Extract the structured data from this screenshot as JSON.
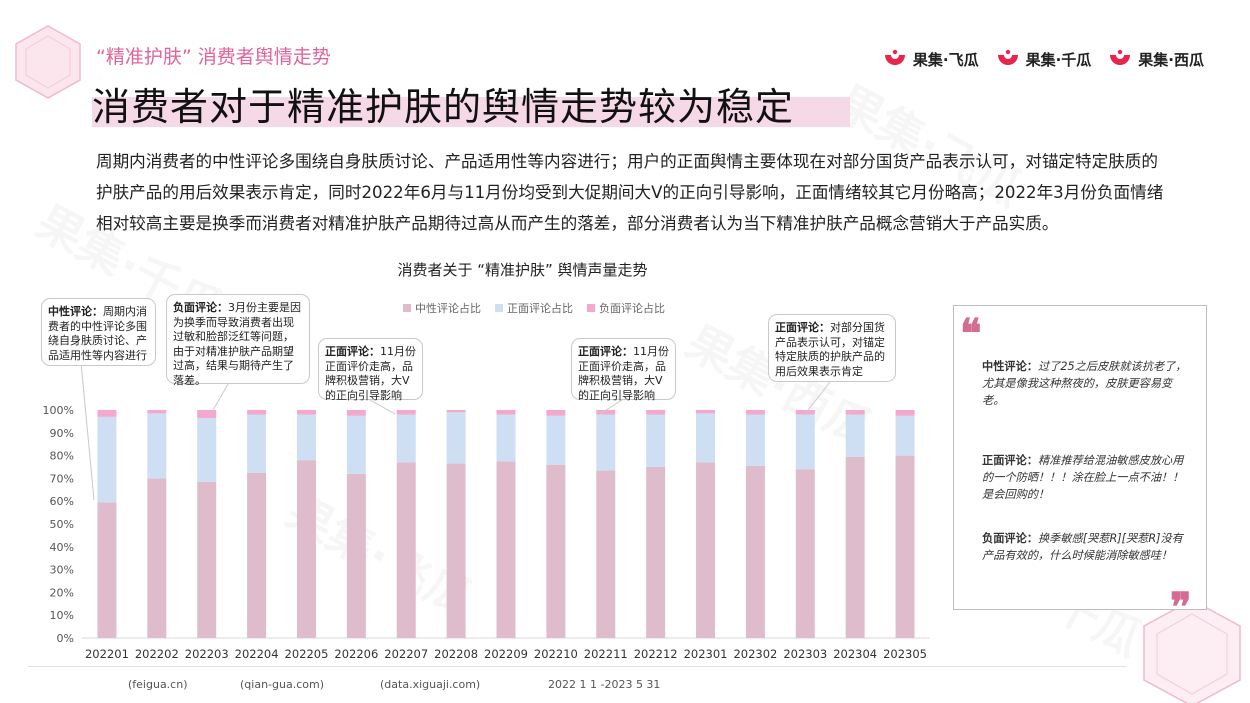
{
  "header": {
    "subtitle": "“精准护肤” 消费者舆情走势",
    "title": "消费者对于精准护肤的舆情走势较为稳定",
    "logos": [
      {
        "label": "果集·飞瓜",
        "icon": "guoji-logo-icon"
      },
      {
        "label": "果集·千瓜",
        "icon": "guoji-logo-icon"
      },
      {
        "label": "果集·西瓜",
        "icon": "guoji-logo-icon"
      }
    ]
  },
  "description": "周期内消费者的中性评论多围绕自身肤质讨论、产品适用性等内容进行；用户的正面舆情主要体现在对部分国货产品表示认可，对锚定特定肤质的护肤产品的用后效果表示肯定，同时2022年6月与11月份均受到大促期间大V的正向引导影响，正面情绪较其它月份略高；2022年3月份负面情绪相对较高主要是换季而消费者对精准护肤产品期待过高从而产生的落差，部分消费者认为当下精准护肤产品概念营销大于产品实质。",
  "chart_data": {
    "type": "bar",
    "stacked": true,
    "title": "消费者关于 “精准护肤” 舆情声量走势",
    "categories": [
      "202201",
      "202202",
      "202203",
      "202204",
      "202205",
      "202206",
      "202207",
      "202208",
      "202209",
      "202210",
      "202211",
      "202212",
      "202301",
      "202302",
      "202303",
      "202304",
      "202305"
    ],
    "series": [
      {
        "name": "中性评论占比",
        "color": "#dfbccb",
        "values": [
          59.5,
          70,
          68.5,
          72.5,
          78,
          72,
          77,
          76.5,
          77.5,
          76,
          73.5,
          75,
          77,
          75.5,
          74,
          79.5,
          80
        ]
      },
      {
        "name": "正面评论占比",
        "color": "#cfdff3",
        "values": [
          37.5,
          28.5,
          28,
          25.5,
          20,
          25.5,
          21,
          22.5,
          20.5,
          21.5,
          24.5,
          23,
          21.5,
          22.5,
          24,
          18.5,
          17.5
        ]
      },
      {
        "name": "负面评论占比",
        "color": "#f3a9cd",
        "values": [
          3,
          1.5,
          3.5,
          2,
          2,
          2.5,
          2,
          1,
          2,
          2.5,
          2,
          2,
          1.5,
          2,
          2,
          2,
          2.5
        ]
      }
    ],
    "ylim": [
      0,
      100
    ],
    "yticks": [
      "0%",
      "10%",
      "20%",
      "30%",
      "40%",
      "50%",
      "60%",
      "70%",
      "80%",
      "90%",
      "100%"
    ],
    "legend_position": "top",
    "grid": false
  },
  "callouts": [
    {
      "label": "中性评论：",
      "text": "周期内消费者的中性评论多围绕自身肤质讨论、产品适用性等内容进行"
    },
    {
      "label": "负面评论：",
      "text": "3月份主要是因为换季而导致消费者出现过敏和脸部泛红等问题，由于对精准护肤产品期望过高，结果与期待产生了落差。"
    },
    {
      "label": "正面评论：",
      "text": "11月份正面评价走高，品牌积极营销，大V的正向引导影响"
    },
    {
      "label": "正面评论：",
      "text": "11月份正面评价走高，品牌积极营销，大V的正向引导影响"
    },
    {
      "label": "正面评论：",
      "text": "对部分国货产品表示认可，对锚定特定肤质的护肤产品的用后效果表示肯定"
    }
  ],
  "side_panel": {
    "items": [
      {
        "label": "中性评论：",
        "text": "过了25之后皮肤就该抗老了，尤其是像我这种熬夜的，皮肤更容易变老。"
      },
      {
        "label": "正面评论：",
        "text": "精准推荐给混油敏感皮放心用的一个防晒！！！涂在脸上一点不油！！是会回购的！"
      },
      {
        "label": "负面评论：",
        "text": "换季敏感[哭惹R][哭惹R]没有产品有效的，什么时候能消除敏感哇！"
      }
    ]
  },
  "footer": {
    "items": [
      "(feigua.cn)",
      "(qian-gua.com)",
      "(data.xiguaji.com)",
      "2022    1    1    -2023    5    31"
    ]
  },
  "colors": {
    "accent": "#e0649a",
    "brand_red": "#e8264c",
    "neutral": "#dfbccb",
    "positive": "#cfdff3",
    "negative": "#f3a9cd"
  }
}
